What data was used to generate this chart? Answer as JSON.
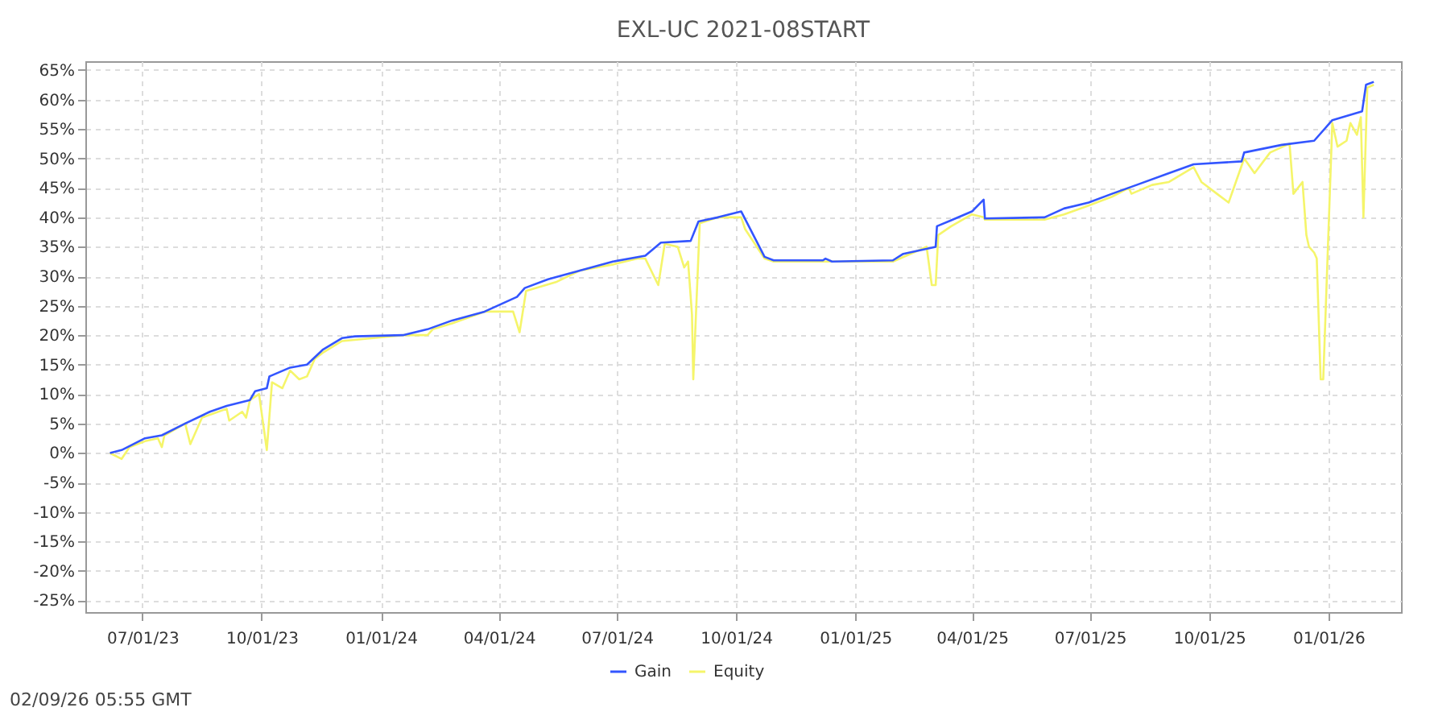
{
  "chart_data": {
    "type": "line",
    "title": "EXL-UC 2021-08START",
    "xlim": [
      "2023-05-18",
      "2026-02-26"
    ],
    "xticks": [
      {
        "value": "2023-07-01",
        "label": "07/01/23"
      },
      {
        "value": "2023-10-01",
        "label": "10/01/23"
      },
      {
        "value": "2024-01-01",
        "label": "01/01/24"
      },
      {
        "value": "2024-04-01",
        "label": "04/01/24"
      },
      {
        "value": "2024-07-01",
        "label": "07/01/24"
      },
      {
        "value": "2024-10-01",
        "label": "10/01/24"
      },
      {
        "value": "2025-01-01",
        "label": "01/01/25"
      },
      {
        "value": "2025-04-01",
        "label": "04/01/25"
      },
      {
        "value": "2025-07-01",
        "label": "07/01/25"
      },
      {
        "value": "2025-10-01",
        "label": "10/01/25"
      },
      {
        "value": "2026-01-01",
        "label": "01/01/26"
      }
    ],
    "ylim": [
      -27,
      66.5
    ],
    "yticks": [
      {
        "value": -25,
        "label": "-25%"
      },
      {
        "value": -20,
        "label": "-20%"
      },
      {
        "value": -15,
        "label": "-15%"
      },
      {
        "value": -10,
        "label": "-10%"
      },
      {
        "value": -5,
        "label": "-5%"
      },
      {
        "value": 0,
        "label": "0%"
      },
      {
        "value": 5,
        "label": "5%"
      },
      {
        "value": 10,
        "label": "10%"
      },
      {
        "value": 15,
        "label": "15%"
      },
      {
        "value": 20,
        "label": "20%"
      },
      {
        "value": 25,
        "label": "25%"
      },
      {
        "value": 30,
        "label": "30%"
      },
      {
        "value": 35,
        "label": "35%"
      },
      {
        "value": 40,
        "label": "40%"
      },
      {
        "value": 45,
        "label": "45%"
      },
      {
        "value": 50,
        "label": "50%"
      },
      {
        "value": 55,
        "label": "55%"
      },
      {
        "value": 60,
        "label": "60%"
      },
      {
        "value": 65,
        "label": "65%"
      }
    ],
    "grid": true,
    "legend": "bottom",
    "line_style": "solid",
    "marker": "none",
    "annotations": [
      "02/09/26 05:55 GMT"
    ],
    "series": [
      {
        "name": "Gain",
        "color": "#3355ff",
        "x": [
          "2023-06-06",
          "2023-06-15",
          "2023-07-03",
          "2023-07-16",
          "2023-08-03",
          "2023-08-22",
          "2023-09-04",
          "2023-09-22",
          "2023-09-26",
          "2023-10-05",
          "2023-10-07",
          "2023-10-23",
          "2023-11-05",
          "2023-11-17",
          "2023-12-02",
          "2023-12-12",
          "2024-01-18",
          "2024-02-06",
          "2024-02-25",
          "2024-03-21",
          "2024-04-15",
          "2024-04-21",
          "2024-05-09",
          "2024-06-03",
          "2024-06-28",
          "2024-07-23",
          "2024-08-04",
          "2024-08-27",
          "2024-09-02",
          "2024-09-17",
          "2024-10-05",
          "2024-10-23",
          "2024-10-30",
          "2024-12-07",
          "2024-12-09",
          "2024-12-14",
          "2025-01-30",
          "2025-02-07",
          "2025-03-04",
          "2025-03-05",
          "2025-03-16",
          "2025-04-01",
          "2025-04-10",
          "2025-04-11",
          "2025-05-27",
          "2025-06-11",
          "2025-06-30",
          "2025-07-18",
          "2025-08-06",
          "2025-08-31",
          "2025-09-19",
          "2025-10-26",
          "2025-10-28",
          "2025-11-26",
          "2025-12-21",
          "2026-01-04",
          "2026-01-27",
          "2026-01-30",
          "2026-02-05"
        ],
        "values": [
          0,
          0.5,
          2.5,
          3,
          5,
          7,
          8,
          9,
          10.5,
          11,
          13,
          14.5,
          15,
          17.5,
          19.5,
          19.8,
          20,
          21,
          22.5,
          24,
          26.5,
          28,
          29.5,
          31,
          32.5,
          33.5,
          35.7,
          36,
          39.3,
          40,
          41,
          33.3,
          32.7,
          32.7,
          33,
          32.5,
          32.7,
          33.8,
          35,
          38.5,
          39.5,
          41,
          43,
          39.8,
          40,
          41.5,
          42.5,
          44,
          45.5,
          47.5,
          49,
          49.5,
          51,
          52.3,
          53,
          56.5,
          58,
          62.5,
          63
        ]
      },
      {
        "name": "Equity",
        "color": "#f5f56a",
        "x": [
          "2023-06-06",
          "2023-06-15",
          "2023-06-21",
          "2023-07-03",
          "2023-07-13",
          "2023-07-16",
          "2023-07-18",
          "2023-08-03",
          "2023-08-07",
          "2023-08-16",
          "2023-09-04",
          "2023-09-06",
          "2023-09-16",
          "2023-09-19",
          "2023-09-22",
          "2023-09-29",
          "2023-10-05",
          "2023-10-09",
          "2023-10-17",
          "2023-10-23",
          "2023-10-30",
          "2023-11-05",
          "2023-11-11",
          "2023-11-17",
          "2023-12-02",
          "2024-01-18",
          "2024-02-06",
          "2024-02-10",
          "2024-02-25",
          "2024-03-21",
          "2024-04-12",
          "2024-04-17",
          "2024-04-22",
          "2024-05-15",
          "2024-06-03",
          "2024-06-28",
          "2024-07-17",
          "2024-07-23",
          "2024-08-02",
          "2024-08-07",
          "2024-08-17",
          "2024-08-22",
          "2024-08-25",
          "2024-08-28",
          "2024-08-29",
          "2024-09-03",
          "2024-09-17",
          "2024-10-05",
          "2024-10-08",
          "2024-10-23",
          "2024-10-30",
          "2025-01-30",
          "2025-02-25",
          "2025-03-01",
          "2025-03-04",
          "2025-03-06",
          "2025-03-16",
          "2025-04-01",
          "2025-04-10",
          "2025-04-11",
          "2025-05-27",
          "2025-06-11",
          "2025-06-30",
          "2025-07-18",
          "2025-07-31",
          "2025-08-02",
          "2025-08-18",
          "2025-08-31",
          "2025-09-19",
          "2025-09-25",
          "2025-10-01",
          "2025-10-07",
          "2025-10-16",
          "2025-10-20",
          "2025-10-28",
          "2025-11-05",
          "2025-11-17",
          "2025-12-02",
          "2025-12-05",
          "2025-12-12",
          "2025-12-15",
          "2025-12-17",
          "2025-12-21",
          "2025-12-23",
          "2025-12-26",
          "2025-12-28",
          "2026-01-04",
          "2026-01-08",
          "2026-01-15",
          "2026-01-18",
          "2026-01-23",
          "2026-01-26",
          "2026-01-28",
          "2026-01-31",
          "2026-02-05"
        ],
        "values": [
          0,
          -1,
          1,
          2,
          2.5,
          1,
          3,
          5,
          1.5,
          6,
          7.5,
          5.5,
          7,
          6,
          9,
          10,
          0.5,
          12,
          11,
          14,
          12.5,
          13,
          16,
          17,
          19,
          20,
          20,
          21,
          22,
          24,
          24,
          20.5,
          27.5,
          29,
          31,
          32,
          33,
          33,
          28.5,
          35.5,
          35,
          31.5,
          32.5,
          23.5,
          12.5,
          39,
          40,
          40,
          38,
          33,
          32.5,
          32.5,
          35,
          28.5,
          28.5,
          37,
          38.5,
          40.5,
          40,
          39.6,
          39.6,
          40.5,
          42,
          43.5,
          45,
          44,
          45.5,
          46,
          48.5,
          46,
          45,
          44,
          42.5,
          45,
          50,
          47.5,
          51,
          52.5,
          44,
          46,
          37,
          35,
          34,
          33,
          12.5,
          12.5,
          56,
          52,
          53,
          56,
          54,
          57,
          40,
          62,
          62.5
        ]
      }
    ]
  }
}
